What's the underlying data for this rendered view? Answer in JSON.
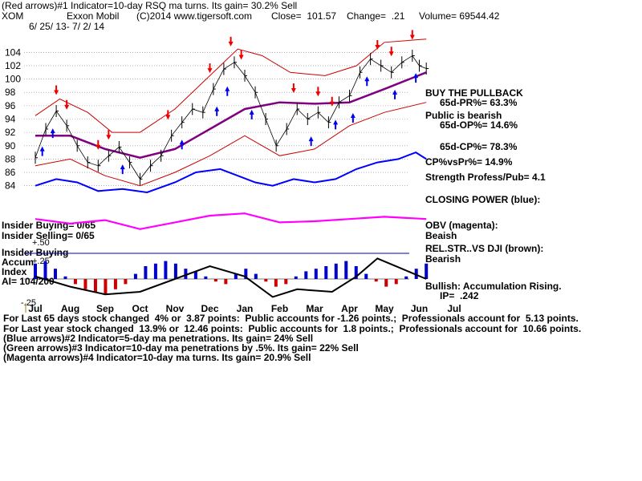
{
  "header": {
    "line1": "(Red arrows)#1 Indicator=10-day RSQ ma turns. Its gain= 30.2% Sell",
    "symbol": "XOM",
    "company": "Exxon Mobil",
    "copyright": "(C)2014 www.tigersoft.com",
    "close": "Close=  101.57",
    "change": "Change=  .21",
    "volume": "Volume= 69544.42",
    "dates": "6/ 25/ 13- 7/ 2/ 14"
  },
  "side_panel": {
    "buy_pullback": "BUY THE PULLBACK",
    "pr": "65d-PR%= 63.3%",
    "public_bearish": "Public is bearish",
    "op": "65d-OP%= 14.6%",
    "cp": "65d-CP%= 78.3%",
    "cpvspr": "CP%vsPr%= 14.9%",
    "strength": "Strength Profess/Pub= 4.1",
    "closing_power": "CLOSING POWER (blue):",
    "obv": "OBV (magenta):",
    "obv_state": "Beaish",
    "relstr": "REL.STR..VS DJI (brown):",
    "relstr_state": "Bearish",
    "bullish": "Bullish: Accumulation Rising.",
    "ip": "IP=  .242"
  },
  "left_panel": {
    "insider_buying": "Insider Buying= 0/65",
    "insider_selling": "Insider Selling= 0/65",
    "insider_buying2": "Insider Buying",
    "accum": "Accum",
    "index": "Index",
    "ai": "AI= 104/200",
    "lvl_50": "+.50",
    "lvl_25": "+.25",
    "lvl_m25": "-.25"
  },
  "footer": {
    "line1": "For Last 65 days stock changed  4% or  3.87 points:  Public accounts for -1.26 points.;  Professionals account for  5.13 points.",
    "line2": "For Last year stock changed  13.9% or  12.46 points:  Public accounts for  1.8 points.;  Professionals account for  10.66 points.",
    "line3": "(Blue arrows)#2 Indicator=5-day ma penetrations. Its gain= 24% Sell",
    "line4": "(Green arrows)#3 Indicator=10-day ma penetrations by .5%. Its gain= 22% Sell",
    "line5": "(Magenta arrows)#4 Indicator=10-day ma turns. Its gain= 20.9% Sell"
  },
  "colors": {
    "price": "#000000",
    "band": "#cc0000",
    "ma": "#800080",
    "closing_power": "#0000ff",
    "obv": "#ff00ff",
    "accum_pos": "#0000cc",
    "accum_neg": "#cc0000",
    "grid": "#888888"
  },
  "chart_data": {
    "type": "line",
    "months": [
      "Jul",
      "Aug",
      "Sep",
      "Oct",
      "Nov",
      "Dec",
      "Jan",
      "Feb",
      "Mar",
      "Apr",
      "May",
      "Jun",
      "Jul"
    ],
    "y_ticks": [
      84,
      86,
      88,
      90,
      92,
      94,
      96,
      98,
      100,
      102,
      104
    ],
    "ylim": [
      83,
      105
    ],
    "price_close": [
      {
        "m": 0.0,
        "y": 88.2
      },
      {
        "m": 0.3,
        "y": 92.5
      },
      {
        "m": 0.6,
        "y": 95.2
      },
      {
        "m": 0.9,
        "y": 93.0
      },
      {
        "m": 1.2,
        "y": 90.0
      },
      {
        "m": 1.5,
        "y": 87.5
      },
      {
        "m": 1.8,
        "y": 87.0
      },
      {
        "m": 2.1,
        "y": 88.5
      },
      {
        "m": 2.4,
        "y": 89.8
      },
      {
        "m": 2.7,
        "y": 87.5
      },
      {
        "m": 3.0,
        "y": 85.0
      },
      {
        "m": 3.3,
        "y": 87.0
      },
      {
        "m": 3.6,
        "y": 88.5
      },
      {
        "m": 3.9,
        "y": 91.5
      },
      {
        "m": 4.2,
        "y": 93.5
      },
      {
        "m": 4.5,
        "y": 95.5
      },
      {
        "m": 4.8,
        "y": 95.0
      },
      {
        "m": 5.1,
        "y": 98.5
      },
      {
        "m": 5.4,
        "y": 101.5
      },
      {
        "m": 5.7,
        "y": 102.5
      },
      {
        "m": 6.0,
        "y": 100.5
      },
      {
        "m": 6.3,
        "y": 98.0
      },
      {
        "m": 6.6,
        "y": 94.0
      },
      {
        "m": 6.9,
        "y": 90.0
      },
      {
        "m": 7.2,
        "y": 92.5
      },
      {
        "m": 7.5,
        "y": 95.5
      },
      {
        "m": 7.8,
        "y": 94.0
      },
      {
        "m": 8.1,
        "y": 95.0
      },
      {
        "m": 8.4,
        "y": 93.5
      },
      {
        "m": 8.7,
        "y": 96.5
      },
      {
        "m": 9.0,
        "y": 97.5
      },
      {
        "m": 9.3,
        "y": 101.0
      },
      {
        "m": 9.6,
        "y": 103.0
      },
      {
        "m": 9.9,
        "y": 102.0
      },
      {
        "m": 10.2,
        "y": 101.0
      },
      {
        "m": 10.5,
        "y": 102.5
      },
      {
        "m": 10.8,
        "y": 103.5
      },
      {
        "m": 11.0,
        "y": 102.0
      },
      {
        "m": 11.2,
        "y": 101.57
      }
    ],
    "ma50": [
      {
        "m": 0.0,
        "y": 91.5
      },
      {
        "m": 1.0,
        "y": 91.5
      },
      {
        "m": 2.0,
        "y": 89.5
      },
      {
        "m": 3.0,
        "y": 88.2
      },
      {
        "m": 4.0,
        "y": 89.5
      },
      {
        "m": 5.0,
        "y": 92.5
      },
      {
        "m": 6.0,
        "y": 95.5
      },
      {
        "m": 7.0,
        "y": 96.5
      },
      {
        "m": 8.0,
        "y": 96.3
      },
      {
        "m": 9.0,
        "y": 96.5
      },
      {
        "m": 10.0,
        "y": 98.5
      },
      {
        "m": 11.2,
        "y": 101.0
      }
    ],
    "band_upper": [
      {
        "m": 0.0,
        "y": 94.5
      },
      {
        "m": 0.7,
        "y": 97.0
      },
      {
        "m": 1.5,
        "y": 95.0
      },
      {
        "m": 2.2,
        "y": 92.0
      },
      {
        "m": 3.0,
        "y": 92.0
      },
      {
        "m": 4.0,
        "y": 95.5
      },
      {
        "m": 5.0,
        "y": 100.5
      },
      {
        "m": 5.8,
        "y": 104.5
      },
      {
        "m": 6.5,
        "y": 103.5
      },
      {
        "m": 7.3,
        "y": 101.0
      },
      {
        "m": 8.3,
        "y": 100.5
      },
      {
        "m": 9.2,
        "y": 102.0
      },
      {
        "m": 10.0,
        "y": 105.5
      },
      {
        "m": 11.2,
        "y": 106.0
      }
    ],
    "band_lower": [
      {
        "m": 0.0,
        "y": 87.0
      },
      {
        "m": 1.0,
        "y": 88.0
      },
      {
        "m": 2.0,
        "y": 85.5
      },
      {
        "m": 3.0,
        "y": 84.0
      },
      {
        "m": 4.0,
        "y": 86.0
      },
      {
        "m": 5.0,
        "y": 88.5
      },
      {
        "m": 6.0,
        "y": 91.5
      },
      {
        "m": 7.0,
        "y": 88.5
      },
      {
        "m": 8.0,
        "y": 89.5
      },
      {
        "m": 9.0,
        "y": 93.0
      },
      {
        "m": 10.0,
        "y": 95.0
      },
      {
        "m": 11.2,
        "y": 96.5
      }
    ],
    "closing_power": [
      {
        "m": 0.0,
        "y": 84.0
      },
      {
        "m": 0.6,
        "y": 85.0
      },
      {
        "m": 1.2,
        "y": 84.5
      },
      {
        "m": 1.8,
        "y": 83.2
      },
      {
        "m": 2.5,
        "y": 83.5
      },
      {
        "m": 3.2,
        "y": 83.0
      },
      {
        "m": 4.0,
        "y": 84.5
      },
      {
        "m": 4.6,
        "y": 86.0
      },
      {
        "m": 5.3,
        "y": 86.5
      },
      {
        "m": 5.8,
        "y": 85.5
      },
      {
        "m": 6.3,
        "y": 84.5
      },
      {
        "m": 6.8,
        "y": 84.0
      },
      {
        "m": 7.4,
        "y": 85.0
      },
      {
        "m": 8.0,
        "y": 84.5
      },
      {
        "m": 8.6,
        "y": 85.0
      },
      {
        "m": 9.2,
        "y": 86.5
      },
      {
        "m": 9.8,
        "y": 87.5
      },
      {
        "m": 10.4,
        "y": 88.0
      },
      {
        "m": 10.9,
        "y": 89.0
      },
      {
        "m": 11.2,
        "y": 88.0
      }
    ],
    "obv": [
      {
        "m": 0.0,
        "y": 0.6
      },
      {
        "m": 1.0,
        "y": 0.4
      },
      {
        "m": 2.0,
        "y": 0.55
      },
      {
        "m": 3.0,
        "y": 0.15
      },
      {
        "m": 4.0,
        "y": 0.45
      },
      {
        "m": 5.0,
        "y": 0.75
      },
      {
        "m": 6.0,
        "y": 0.85
      },
      {
        "m": 7.0,
        "y": 0.45
      },
      {
        "m": 8.0,
        "y": 0.5
      },
      {
        "m": 9.0,
        "y": 0.6
      },
      {
        "m": 10.0,
        "y": 0.7
      },
      {
        "m": 11.2,
        "y": 0.6
      }
    ],
    "accumulation": [
      0.3,
      0.35,
      0.2,
      0.05,
      -0.1,
      -0.2,
      -0.25,
      -0.3,
      -0.2,
      -0.1,
      0.1,
      0.25,
      0.3,
      0.35,
      0.3,
      0.2,
      0.15,
      0.05,
      -0.05,
      -0.1,
      0.1,
      0.2,
      0.1,
      -0.05,
      -0.15,
      -0.1,
      0.05,
      0.15,
      0.2,
      0.25,
      0.3,
      0.35,
      0.25,
      0.1,
      -0.05,
      -0.15,
      -0.1,
      0.05,
      0.2,
      0.3
    ],
    "rel_strength": [
      {
        "m": 0.0,
        "y": 0.55
      },
      {
        "m": 1.0,
        "y": 0.35
      },
      {
        "m": 2.0,
        "y": 0.2
      },
      {
        "m": 3.0,
        "y": 0.25
      },
      {
        "m": 4.0,
        "y": 0.5
      },
      {
        "m": 5.0,
        "y": 0.75
      },
      {
        "m": 6.0,
        "y": 0.55
      },
      {
        "m": 6.8,
        "y": 0.15
      },
      {
        "m": 7.5,
        "y": 0.3
      },
      {
        "m": 8.5,
        "y": 0.25
      },
      {
        "m": 9.2,
        "y": 0.55
      },
      {
        "m": 9.8,
        "y": 0.9
      },
      {
        "m": 10.5,
        "y": 0.7
      },
      {
        "m": 11.2,
        "y": 0.5
      }
    ],
    "red_arrows": [
      0.6,
      0.9,
      1.8,
      2.1,
      3.8,
      5.0,
      5.6,
      5.9,
      7.4,
      8.1,
      8.5,
      9.8,
      10.2,
      10.8
    ],
    "blue_arrows": [
      0.2,
      0.5,
      2.5,
      4.2,
      5.2,
      5.5,
      6.2,
      7.9,
      8.6,
      9.1,
      9.5,
      10.3,
      10.9
    ]
  }
}
